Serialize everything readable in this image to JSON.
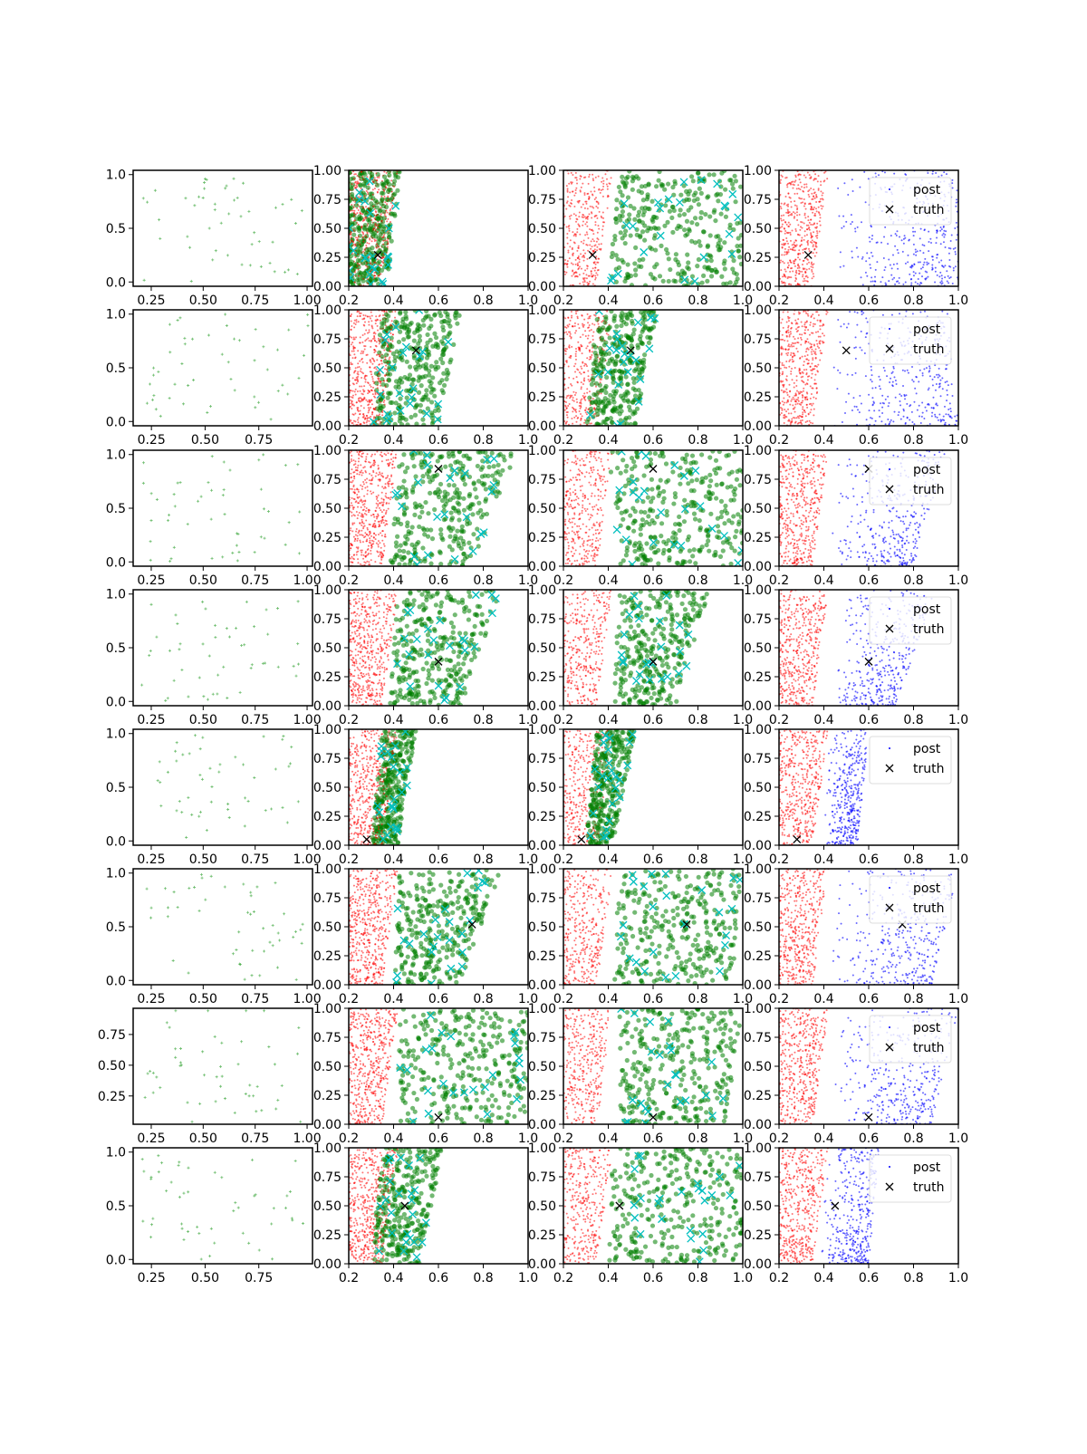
{
  "chart_data": {
    "type": "scatter",
    "layout": "8 rows x 4 columns grid of scatter panels",
    "colors": {
      "prior": "#2ca02c",
      "red": "#ff0000",
      "green": "#008000",
      "cyan": "#00bfbf",
      "blue": "#0000ff",
      "truth": "#000000"
    },
    "legend": {
      "labels": [
        "post",
        "truth"
      ],
      "placement": "upper right",
      "column": 4
    },
    "main_xlim": [
      0.2,
      1.0
    ],
    "main_ylim": [
      0.0,
      1.0
    ],
    "main_xticks": [
      "0.2",
      "0.4",
      "0.6",
      "0.8",
      "1.0"
    ],
    "main_xtick_values": [
      0.2,
      0.4,
      0.6,
      0.8,
      1.0
    ],
    "main_yticks": [
      "0.00",
      "0.25",
      "0.50",
      "0.75",
      "1.00"
    ],
    "main_ytick_values": [
      0,
      0.25,
      0.5,
      0.75,
      1.0
    ],
    "rows": [
      {
        "truth": [
          0.33,
          0.27
        ],
        "col1": {
          "xlim": [
            0.163,
            1.026
          ],
          "ylim": [
            -0.04,
            1.04
          ],
          "xticks": [
            "0.25",
            "0.50",
            "0.75",
            "1.00"
          ],
          "xtick_values": [
            0.25,
            0.5,
            0.75,
            1.0
          ],
          "yticks": [
            "0.0",
            "0.5",
            "1.0"
          ],
          "ytick_values": [
            0,
            0.5,
            1.0
          ]
        },
        "green2": [
          0.2,
          0.37,
          0.2,
          0.43
        ],
        "green3": [
          0.4,
          1.0,
          0.45,
          1.0
        ],
        "blue": [
          0.42,
          1.0,
          0.45,
          1.0
        ]
      },
      {
        "truth": [
          0.5,
          0.65
        ],
        "col1": {
          "xlim": [
            0.165,
            1.0
          ],
          "ylim": [
            -0.04,
            1.04
          ],
          "xticks": [
            "0.25",
            "0.50",
            "0.75"
          ],
          "xtick_values": [
            0.25,
            0.5,
            0.75
          ],
          "yticks": [
            "0.0",
            "0.5",
            "1.0"
          ],
          "ytick_values": [
            0,
            0.5,
            1.0
          ]
        },
        "green2": [
          0.3,
          0.6,
          0.35,
          0.7
        ],
        "green3": [
          0.3,
          0.52,
          0.35,
          0.62
        ],
        "blue": [
          0.42,
          1.0,
          0.45,
          0.95
        ]
      },
      {
        "truth": [
          0.6,
          0.84
        ],
        "col1": {
          "xlim": [
            0.163,
            1.026
          ],
          "ylim": [
            -0.04,
            1.04
          ],
          "xticks": [
            "0.25",
            "0.50",
            "0.75",
            "1.00"
          ],
          "xtick_values": [
            0.25,
            0.5,
            0.75,
            1.0
          ],
          "yticks": [
            "0.0",
            "0.5",
            "1.0"
          ],
          "ytick_values": [
            0,
            0.5,
            1.0
          ]
        },
        "green2": [
          0.38,
          0.75,
          0.42,
          0.95
        ],
        "green3": [
          0.45,
          1.0,
          0.4,
          1.0
        ],
        "blue": [
          0.42,
          0.8,
          0.45,
          0.95
        ]
      },
      {
        "truth": [
          0.6,
          0.38
        ],
        "col1": {
          "xlim": [
            0.163,
            1.026
          ],
          "ylim": [
            -0.04,
            1.04
          ],
          "xticks": [
            "0.25",
            "0.50",
            "0.75",
            "1.00"
          ],
          "xtick_values": [
            0.25,
            0.5,
            0.75,
            1.0
          ],
          "yticks": [
            "0.0",
            "0.5",
            "1.0"
          ],
          "ytick_values": [
            0,
            0.5,
            1.0
          ]
        },
        "green2": [
          0.38,
          0.7,
          0.42,
          0.88
        ],
        "green3": [
          0.42,
          0.7,
          0.45,
          0.85
        ],
        "blue": [
          0.45,
          0.72,
          0.45,
          0.9
        ]
      },
      {
        "truth": [
          0.28,
          0.05
        ],
        "col1": {
          "xlim": [
            0.163,
            1.026
          ],
          "ylim": [
            -0.04,
            1.04
          ],
          "xticks": [
            "0.25",
            "0.50",
            "0.75",
            "1.00"
          ],
          "xtick_values": [
            0.25,
            0.5,
            0.75,
            1.0
          ],
          "yticks": [
            "0.0",
            "0.5",
            "1.0"
          ],
          "ytick_values": [
            0,
            0.5,
            1.0
          ]
        },
        "green2": [
          0.3,
          0.42,
          0.35,
          0.5
        ],
        "green3": [
          0.3,
          0.42,
          0.35,
          0.52
        ],
        "blue": [
          0.4,
          0.55,
          0.42,
          0.6
        ]
      },
      {
        "truth": [
          0.75,
          0.52
        ],
        "col1": {
          "xlim": [
            0.163,
            1.026
          ],
          "ylim": [
            -0.04,
            1.04
          ],
          "xticks": [
            "0.25",
            "0.50",
            "0.75",
            "1.00"
          ],
          "xtick_values": [
            0.25,
            0.5,
            0.75,
            1.0
          ],
          "yticks": [
            "0.0",
            "0.5",
            "1.0"
          ],
          "ytick_values": [
            0,
            0.5,
            1.0
          ]
        },
        "green2": [
          0.4,
          0.7,
          0.42,
          0.88
        ],
        "green3": [
          0.42,
          0.95,
          0.45,
          1.0
        ],
        "blue": [
          0.42,
          0.88,
          0.45,
          1.0
        ]
      },
      {
        "truth": [
          0.6,
          0.06
        ],
        "col1": {
          "xlim": [
            0.163,
            1.026
          ],
          "ylim": [
            0.02,
            0.963
          ],
          "xticks": [
            "0.25",
            "0.50",
            "0.75",
            "1.00"
          ],
          "xtick_values": [
            0.25,
            0.5,
            0.75,
            1.0
          ],
          "yticks": [
            "0.25",
            "0.50",
            "0.75"
          ],
          "ytick_values": [
            0.25,
            0.5,
            0.75
          ]
        },
        "green2": [
          0.42,
          1.0,
          0.42,
          1.0
        ],
        "green3": [
          0.45,
          0.92,
          0.45,
          1.0
        ],
        "blue": [
          0.45,
          0.88,
          0.45,
          1.0
        ]
      },
      {
        "truth": [
          0.45,
          0.5
        ],
        "col1": {
          "xlim": [
            0.165,
            1.0
          ],
          "ylim": [
            -0.04,
            1.04
          ],
          "xticks": [
            "0.25",
            "0.50",
            "0.75"
          ],
          "xtick_values": [
            0.25,
            0.5,
            0.75
          ],
          "yticks": [
            "0.0",
            "0.5",
            "1.0"
          ],
          "ytick_values": [
            0,
            0.5,
            1.0
          ]
        },
        "green2": [
          0.3,
          0.52,
          0.35,
          0.62
        ],
        "green3": [
          0.4,
          1.0,
          0.42,
          1.0
        ],
        "blue": [
          0.38,
          0.6,
          0.42,
          0.65
        ]
      }
    ]
  }
}
